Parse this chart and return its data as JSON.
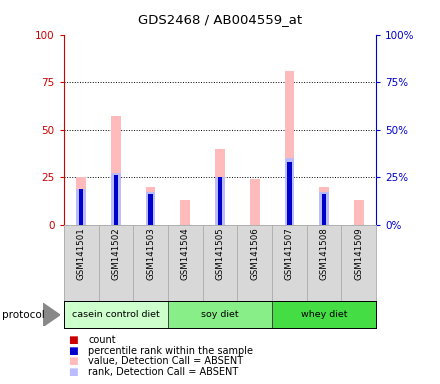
{
  "title": "GDS2468 / AB004559_at",
  "samples": [
    "GSM141501",
    "GSM141502",
    "GSM141503",
    "GSM141504",
    "GSM141505",
    "GSM141506",
    "GSM141507",
    "GSM141508",
    "GSM141509"
  ],
  "absent_value": [
    25,
    57,
    20,
    13,
    40,
    24,
    81,
    20,
    13
  ],
  "absent_rank": [
    19,
    27,
    17,
    0,
    25,
    0,
    35,
    17,
    0
  ],
  "count_values": [
    19,
    26,
    16,
    0,
    25,
    0,
    33,
    16,
    0
  ],
  "rank_values": [
    19,
    26,
    16,
    0,
    25,
    0,
    33,
    16,
    0
  ],
  "groups": [
    {
      "label": "casein control diet",
      "start": 0,
      "end": 3,
      "color": "#ccffcc"
    },
    {
      "label": "soy diet",
      "start": 3,
      "end": 6,
      "color": "#88ee88"
    },
    {
      "label": "whey diet",
      "start": 6,
      "end": 9,
      "color": "#44dd44"
    }
  ],
  "ylim": [
    0,
    100
  ],
  "yticks": [
    0,
    25,
    50,
    75,
    100
  ],
  "color_count": "#cc0000",
  "color_rank": "#0000cc",
  "color_absent_value": "#ffbbbb",
  "color_absent_rank": "#bbbbff",
  "left_yaxis_color": "#cc0000",
  "right_yaxis_color": "#0000cc",
  "background_color": "#ffffff",
  "gray_box_color": "#d8d8d8",
  "legend_items": [
    [
      "#cc0000",
      "count"
    ],
    [
      "#0000cc",
      "percentile rank within the sample"
    ],
    [
      "#ffbbbb",
      "value, Detection Call = ABSENT"
    ],
    [
      "#bbbbff",
      "rank, Detection Call = ABSENT"
    ]
  ]
}
